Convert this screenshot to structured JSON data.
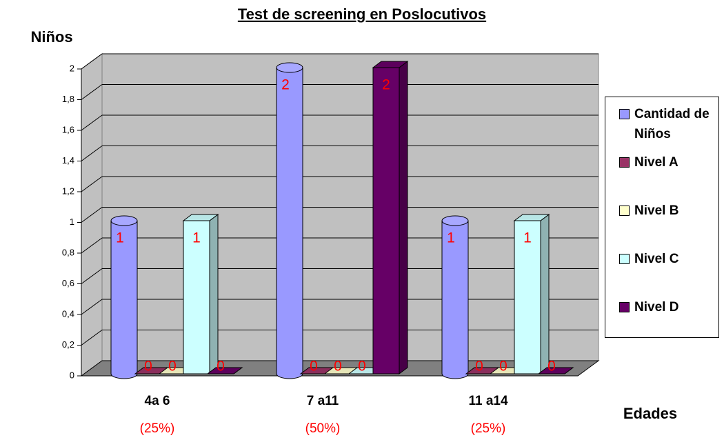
{
  "chart_data": {
    "type": "bar3d",
    "title": "Test de screening en Poslocutivos",
    "y_label": "Niños",
    "x_label": "Edades",
    "categories": [
      "4a 6",
      "7 a11",
      "11 a14"
    ],
    "annotations": [
      "(25%)",
      "(50%)",
      "(25%)"
    ],
    "series": [
      {
        "name": "Cantidad de Niños",
        "color": "#9999ff",
        "shape": "cylinder",
        "values": [
          1,
          2,
          1
        ]
      },
      {
        "name": "Nivel A",
        "color": "#993366",
        "shape": "box",
        "values": [
          0,
          0,
          0
        ]
      },
      {
        "name": "Nivel B",
        "color": "#ffffcc",
        "shape": "box",
        "values": [
          0,
          0,
          0
        ]
      },
      {
        "name": "Nivel C",
        "color": "#ccffff",
        "shape": "box",
        "values": [
          1,
          0,
          1
        ]
      },
      {
        "name": "Nivel D",
        "color": "#660066",
        "shape": "box",
        "values": [
          0,
          2,
          0
        ]
      }
    ],
    "ylim": [
      0,
      2
    ],
    "yticks": [
      0,
      {
        "value": 0.2,
        "label": "0,2"
      },
      {
        "value": 0.4,
        "label": "0,4"
      },
      {
        "value": 0.6,
        "label": "0,6"
      },
      {
        "value": 0.8,
        "label": "0,8"
      },
      1,
      {
        "value": 1.2,
        "label": "1,2"
      },
      {
        "value": 1.4,
        "label": "1,4"
      },
      {
        "value": 1.6,
        "label": "1,6"
      },
      {
        "value": 1.8,
        "label": "1,8"
      },
      2
    ],
    "grid": true,
    "legend": "right"
  }
}
